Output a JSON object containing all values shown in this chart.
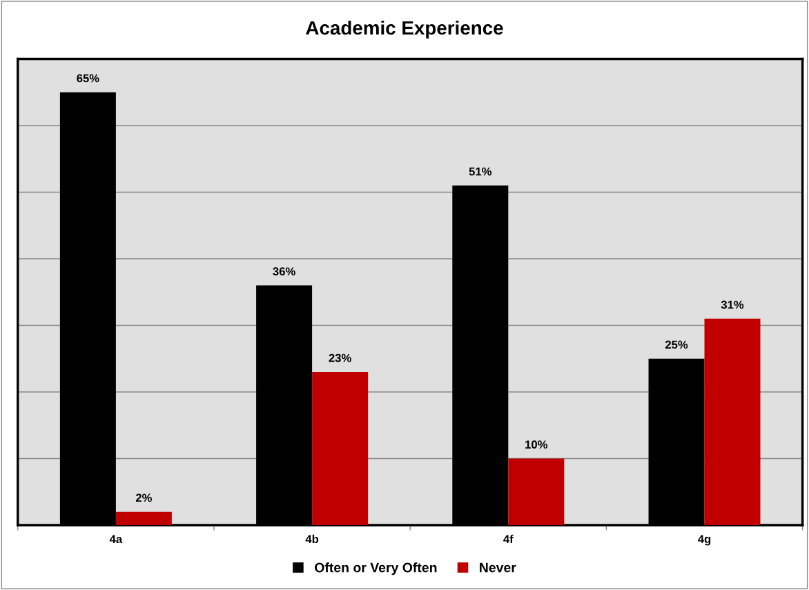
{
  "chart_data": {
    "type": "bar",
    "title": "Academic Experience",
    "categories": [
      "4a",
      "4b",
      "4f",
      "4g"
    ],
    "series": [
      {
        "name": "Often or Very Often",
        "color": "#000000",
        "values": [
          65,
          36,
          51,
          25
        ],
        "value_labels": [
          "65%",
          "36%",
          "51%",
          "25%"
        ]
      },
      {
        "name": "Never",
        "color": "#c00000",
        "values": [
          2,
          23,
          10,
          31
        ],
        "value_labels": [
          "2%",
          "23%",
          "10%",
          "31%"
        ]
      }
    ],
    "ylim": [
      0,
      70
    ],
    "yticks": [
      {
        "value": 0,
        "label": null
      },
      {
        "value": 10,
        "label": null
      },
      {
        "value": 20,
        "label": null
      },
      {
        "value": 30,
        "label": null
      },
      {
        "value": 40,
        "label": null
      },
      {
        "value": 50,
        "label": null
      },
      {
        "value": 60,
        "label": null
      },
      {
        "value": 70,
        "label": null
      }
    ],
    "tick_labels": "x",
    "grid": "y",
    "legend": "bottom"
  }
}
